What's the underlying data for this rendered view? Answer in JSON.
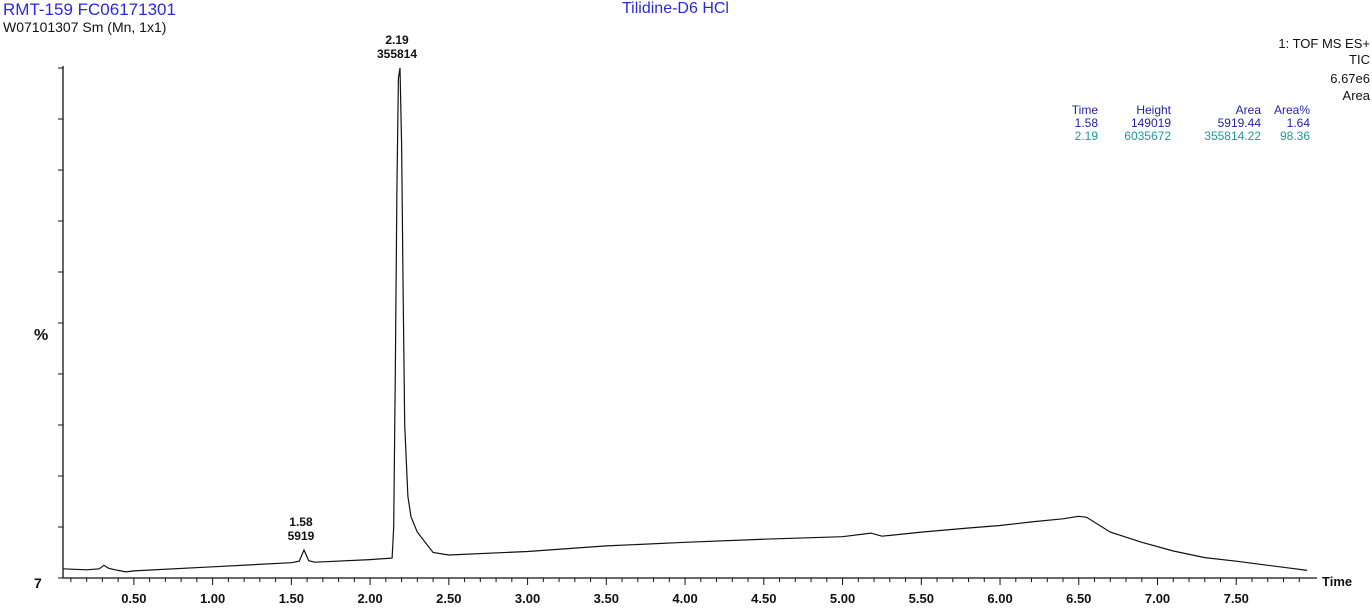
{
  "header": {
    "sample_id": "RMT-159  FC06171301",
    "sample_sub": "W07101307 Sm (Mn, 1x1)",
    "compound": "Tilidine-D6 HCl",
    "scan_mode": "1: TOF MS ES+",
    "trace": "TIC",
    "max_intensity": "6.67e6",
    "integration": "Area"
  },
  "peak_table": {
    "columns": [
      "Time",
      "Height",
      "Area",
      "Area%"
    ],
    "rows": [
      [
        "1.58",
        "149019",
        "5919.44",
        "1.64"
      ],
      [
        "2.19",
        "6035672",
        "355814.22",
        "98.36"
      ]
    ]
  },
  "colors": {
    "title_blue": "#2a2ad8",
    "table_header": "#1f1fa8",
    "row1": "#1f1fa8",
    "row2": "#1a9a9a",
    "trace": "#111111"
  },
  "chart_data": {
    "type": "line",
    "title": "Tilidine-D6 HCl",
    "xlabel": "Time",
    "ylabel": "%",
    "y_axis_bottom_label": "7",
    "xlim": [
      0.05,
      8.0
    ],
    "ylim": [
      0,
      100
    ],
    "x_ticks": [
      "0.50",
      "1.00",
      "1.50",
      "2.00",
      "2.50",
      "3.00",
      "3.50",
      "4.00",
      "4.50",
      "5.00",
      "5.50",
      "6.00",
      "6.50",
      "7.00",
      "7.50"
    ],
    "peaks": [
      {
        "time": 1.58,
        "area": 5919,
        "time_label": "1.58",
        "area_label": "5919"
      },
      {
        "time": 2.19,
        "area": 355814,
        "time_label": "2.19",
        "area_label": "355814"
      }
    ],
    "series": [
      {
        "x": [
          0.05,
          0.2,
          0.28,
          0.31,
          0.34,
          0.4,
          0.45,
          0.5,
          1.0,
          1.5,
          1.55,
          1.58,
          1.61,
          1.65,
          2.0,
          2.14,
          2.15,
          2.16,
          2.17,
          2.18,
          2.19,
          2.2,
          2.21,
          2.22,
          2.24,
          2.26,
          2.3,
          2.4,
          2.5,
          3.0,
          3.5,
          4.0,
          4.5,
          5.0,
          5.18,
          5.25,
          5.5,
          5.8,
          6.0,
          6.2,
          6.4,
          6.5,
          6.55,
          6.7,
          6.9,
          7.1,
          7.3,
          7.5,
          7.7,
          7.85,
          7.95
        ],
        "y": [
          1.8,
          1.6,
          1.8,
          2.5,
          1.9,
          1.5,
          1.2,
          1.4,
          2.2,
          3.0,
          3.3,
          5.5,
          3.4,
          3.1,
          3.6,
          3.9,
          10,
          40,
          76,
          98,
          100,
          85,
          55,
          30,
          16,
          12,
          9,
          5,
          4.5,
          5.2,
          6.3,
          7.0,
          7.6,
          8.1,
          8.8,
          8.2,
          9.0,
          9.8,
          10.3,
          11.0,
          11.6,
          12.1,
          11.9,
          9.0,
          7.0,
          5.3,
          4.0,
          3.3,
          2.5,
          1.9,
          1.5
        ]
      }
    ]
  }
}
